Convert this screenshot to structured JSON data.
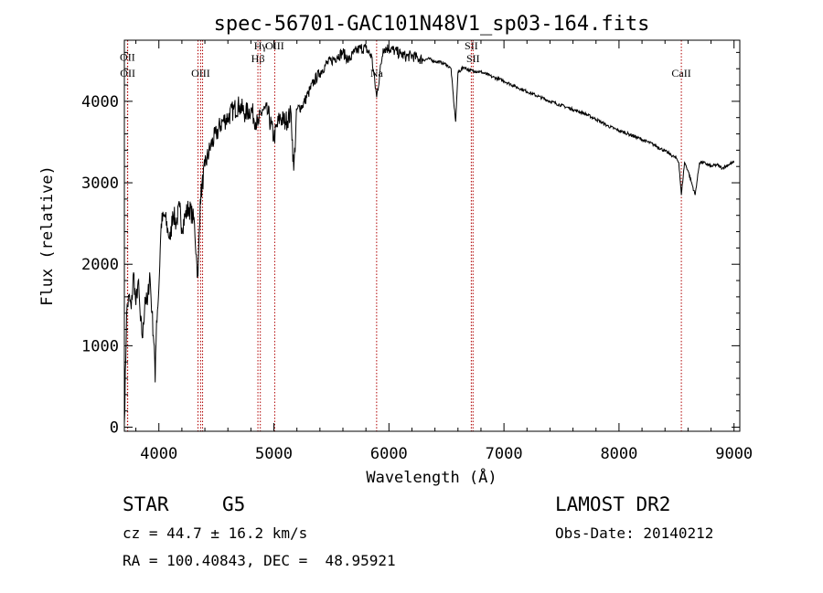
{
  "chart_data": {
    "type": "line",
    "title": "spec-56701-GAC101N48V1_sp03-164.fits",
    "xlabel": "Wavelength (Å)",
    "ylabel": "Flux (relative)",
    "xlim": [
      3700,
      9050
    ],
    "ylim": [
      -50,
      4750
    ],
    "x_ticks": [
      4000,
      5000,
      6000,
      7000,
      8000,
      9000
    ],
    "x_tick_labels": [
      "4000",
      "5000",
      "6000",
      "7000",
      "8000",
      "9000"
    ],
    "y_ticks": [
      0,
      1000,
      2000,
      3000,
      4000
    ],
    "y_tick_labels": [
      "0",
      "1000",
      "2000",
      "3000",
      "4000"
    ],
    "series": [
      {
        "name": "spectrum",
        "x": [
          3700,
          3720,
          3740,
          3760,
          3780,
          3800,
          3820,
          3840,
          3860,
          3880,
          3900,
          3920,
          3940,
          3960,
          3968,
          3980,
          4000,
          4020,
          4050,
          4080,
          4101,
          4120,
          4150,
          4180,
          4200,
          4230,
          4260,
          4290,
          4310,
          4330,
          4340,
          4360,
          4400,
          4450,
          4500,
          4550,
          4600,
          4650,
          4700,
          4750,
          4800,
          4861,
          4900,
          4950,
          5000,
          5050,
          5100,
          5150,
          5172,
          5200,
          5250,
          5300,
          5350,
          5400,
          5450,
          5500,
          5550,
          5600,
          5650,
          5700,
          5750,
          5800,
          5850,
          5893,
          5950,
          6000,
          6050,
          6100,
          6150,
          6200,
          6250,
          6300,
          6350,
          6400,
          6450,
          6500,
          6540,
          6563,
          6580,
          6600,
          6650,
          6700,
          6750,
          6800,
          6900,
          7000,
          7100,
          7200,
          7300,
          7400,
          7500,
          7600,
          7700,
          7800,
          7900,
          8000,
          8100,
          8200,
          8300,
          8400,
          8498,
          8520,
          8542,
          8570,
          8600,
          8662,
          8700,
          8750,
          8800,
          8850,
          8900,
          8950,
          9000
        ],
        "y": [
          50,
          1400,
          1600,
          1450,
          1900,
          1500,
          1800,
          1300,
          1100,
          1600,
          1500,
          1900,
          1400,
          1000,
          550,
          1300,
          1700,
          2500,
          2600,
          2400,
          2300,
          2650,
          2500,
          2700,
          2450,
          2600,
          2700,
          2600,
          2500,
          2000,
          1850,
          2800,
          3200,
          3450,
          3600,
          3750,
          3800,
          3900,
          3950,
          3850,
          3900,
          3700,
          3900,
          3850,
          3550,
          3800,
          3750,
          3850,
          3150,
          3900,
          3950,
          4100,
          4250,
          4350,
          4450,
          4500,
          4550,
          4600,
          4500,
          4600,
          4650,
          4650,
          4550,
          4050,
          4650,
          4650,
          4620,
          4580,
          4550,
          4560,
          4530,
          4510,
          4520,
          4490,
          4480,
          4450,
          4400,
          4000,
          3750,
          4350,
          4420,
          4380,
          4370,
          4360,
          4300,
          4250,
          4180,
          4120,
          4060,
          4000,
          3950,
          3900,
          3850,
          3780,
          3700,
          3640,
          3590,
          3530,
          3470,
          3390,
          3300,
          3250,
          2850,
          3250,
          3150,
          2850,
          3250,
          3240,
          3200,
          3220,
          3180,
          3220,
          3250
        ]
      }
    ],
    "lines": [
      {
        "x": 3727,
        "label": "OII",
        "label_y": 4500
      },
      {
        "x": 3729,
        "label": "OII",
        "label_y": 4300
      },
      {
        "x": 4340,
        "label": "",
        "label_y": 4300
      },
      {
        "x": 4363,
        "label": "OIII",
        "label_y": 4300
      },
      {
        "x": 4380,
        "label": "",
        "label_y": 4300
      },
      {
        "x": 4861,
        "label": "Hβ",
        "label_y": 4480
      },
      {
        "x": 4882,
        "label": "Hγ",
        "label_y": 4640
      },
      {
        "x": 5007,
        "label": "OIII",
        "label_y": 4640
      },
      {
        "x": 5893,
        "label": "Na",
        "label_y": 4300
      },
      {
        "x": 6716,
        "label": "SII",
        "label_y": 4640
      },
      {
        "x": 6731,
        "label": "SII",
        "label_y": 4480
      },
      {
        "x": 8542,
        "label": "CaII",
        "label_y": 4300
      }
    ]
  },
  "info": {
    "object_class": "STAR",
    "subclass": "G5",
    "survey": "LAMOST DR2",
    "cz": "cz = 44.7 ± 16.2 km/s",
    "obs_date": "Obs-Date: 20140212",
    "coords": "RA = 100.40843, DEC =  48.95921"
  }
}
